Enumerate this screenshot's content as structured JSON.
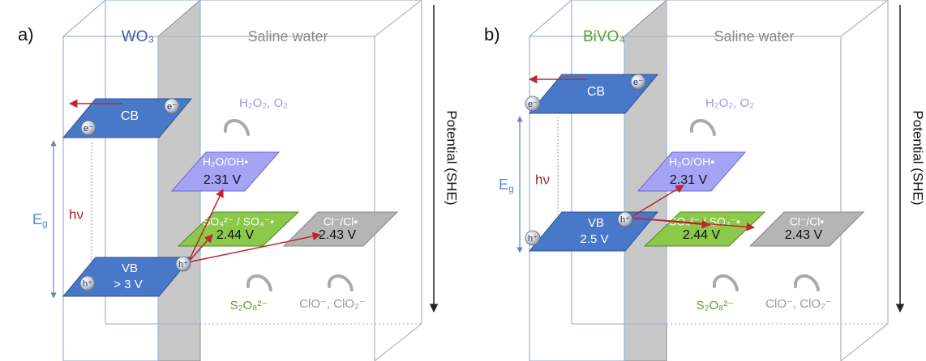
{
  "panels": [
    {
      "label": "a)",
      "material": "WO₃",
      "medium": "Saline water",
      "cb": {
        "label": "CB",
        "electrons": [
          "e⁻",
          "e⁻"
        ]
      },
      "vb": {
        "label": "VB",
        "potential": "> 3 V",
        "holes": [
          "h⁺",
          "h⁺"
        ]
      },
      "photon": "hν",
      "band_gap": {
        "symbol": "E",
        "subscript": "g"
      },
      "couples": [
        {
          "label": "H₂O/OH•",
          "potential": "2.31 V",
          "product": "H₂O₂, O₂"
        },
        {
          "label": "SO₄²⁻ / SO₄⁻•",
          "potential": "2.44 V",
          "product": "S₂O₈²⁻"
        },
        {
          "label": "Cl⁻/Cl•",
          "potential": "2.43 V",
          "product": "ClO⁻, ClO₂⁻"
        }
      ],
      "axis_label": "Potential (SHE)"
    },
    {
      "label": "b)",
      "material": "BiVO₄",
      "medium": "Saline water",
      "cb": {
        "label": "CB",
        "electrons": [
          "e⁻",
          "e⁻"
        ]
      },
      "vb": {
        "label": "VB",
        "potential": "2.5 V",
        "holes": [
          "h⁺",
          "h⁺"
        ]
      },
      "photon": "hν",
      "band_gap": {
        "symbol": "E",
        "subscript": "g"
      },
      "couples": [
        {
          "label": "H₂O/OH•",
          "potential": "2.31 V",
          "product": "H₂O₂, O₂"
        },
        {
          "label": "SO₄²⁻ / SO₄⁻•",
          "potential": "2.44 V",
          "product": "S₂O₈²⁻"
        },
        {
          "label": "Cl⁻/Cl•",
          "potential": "2.43 V",
          "product": "ClO⁻, ClO₂⁻"
        }
      ],
      "axis_label": "Potential (SHE)"
    }
  ]
}
